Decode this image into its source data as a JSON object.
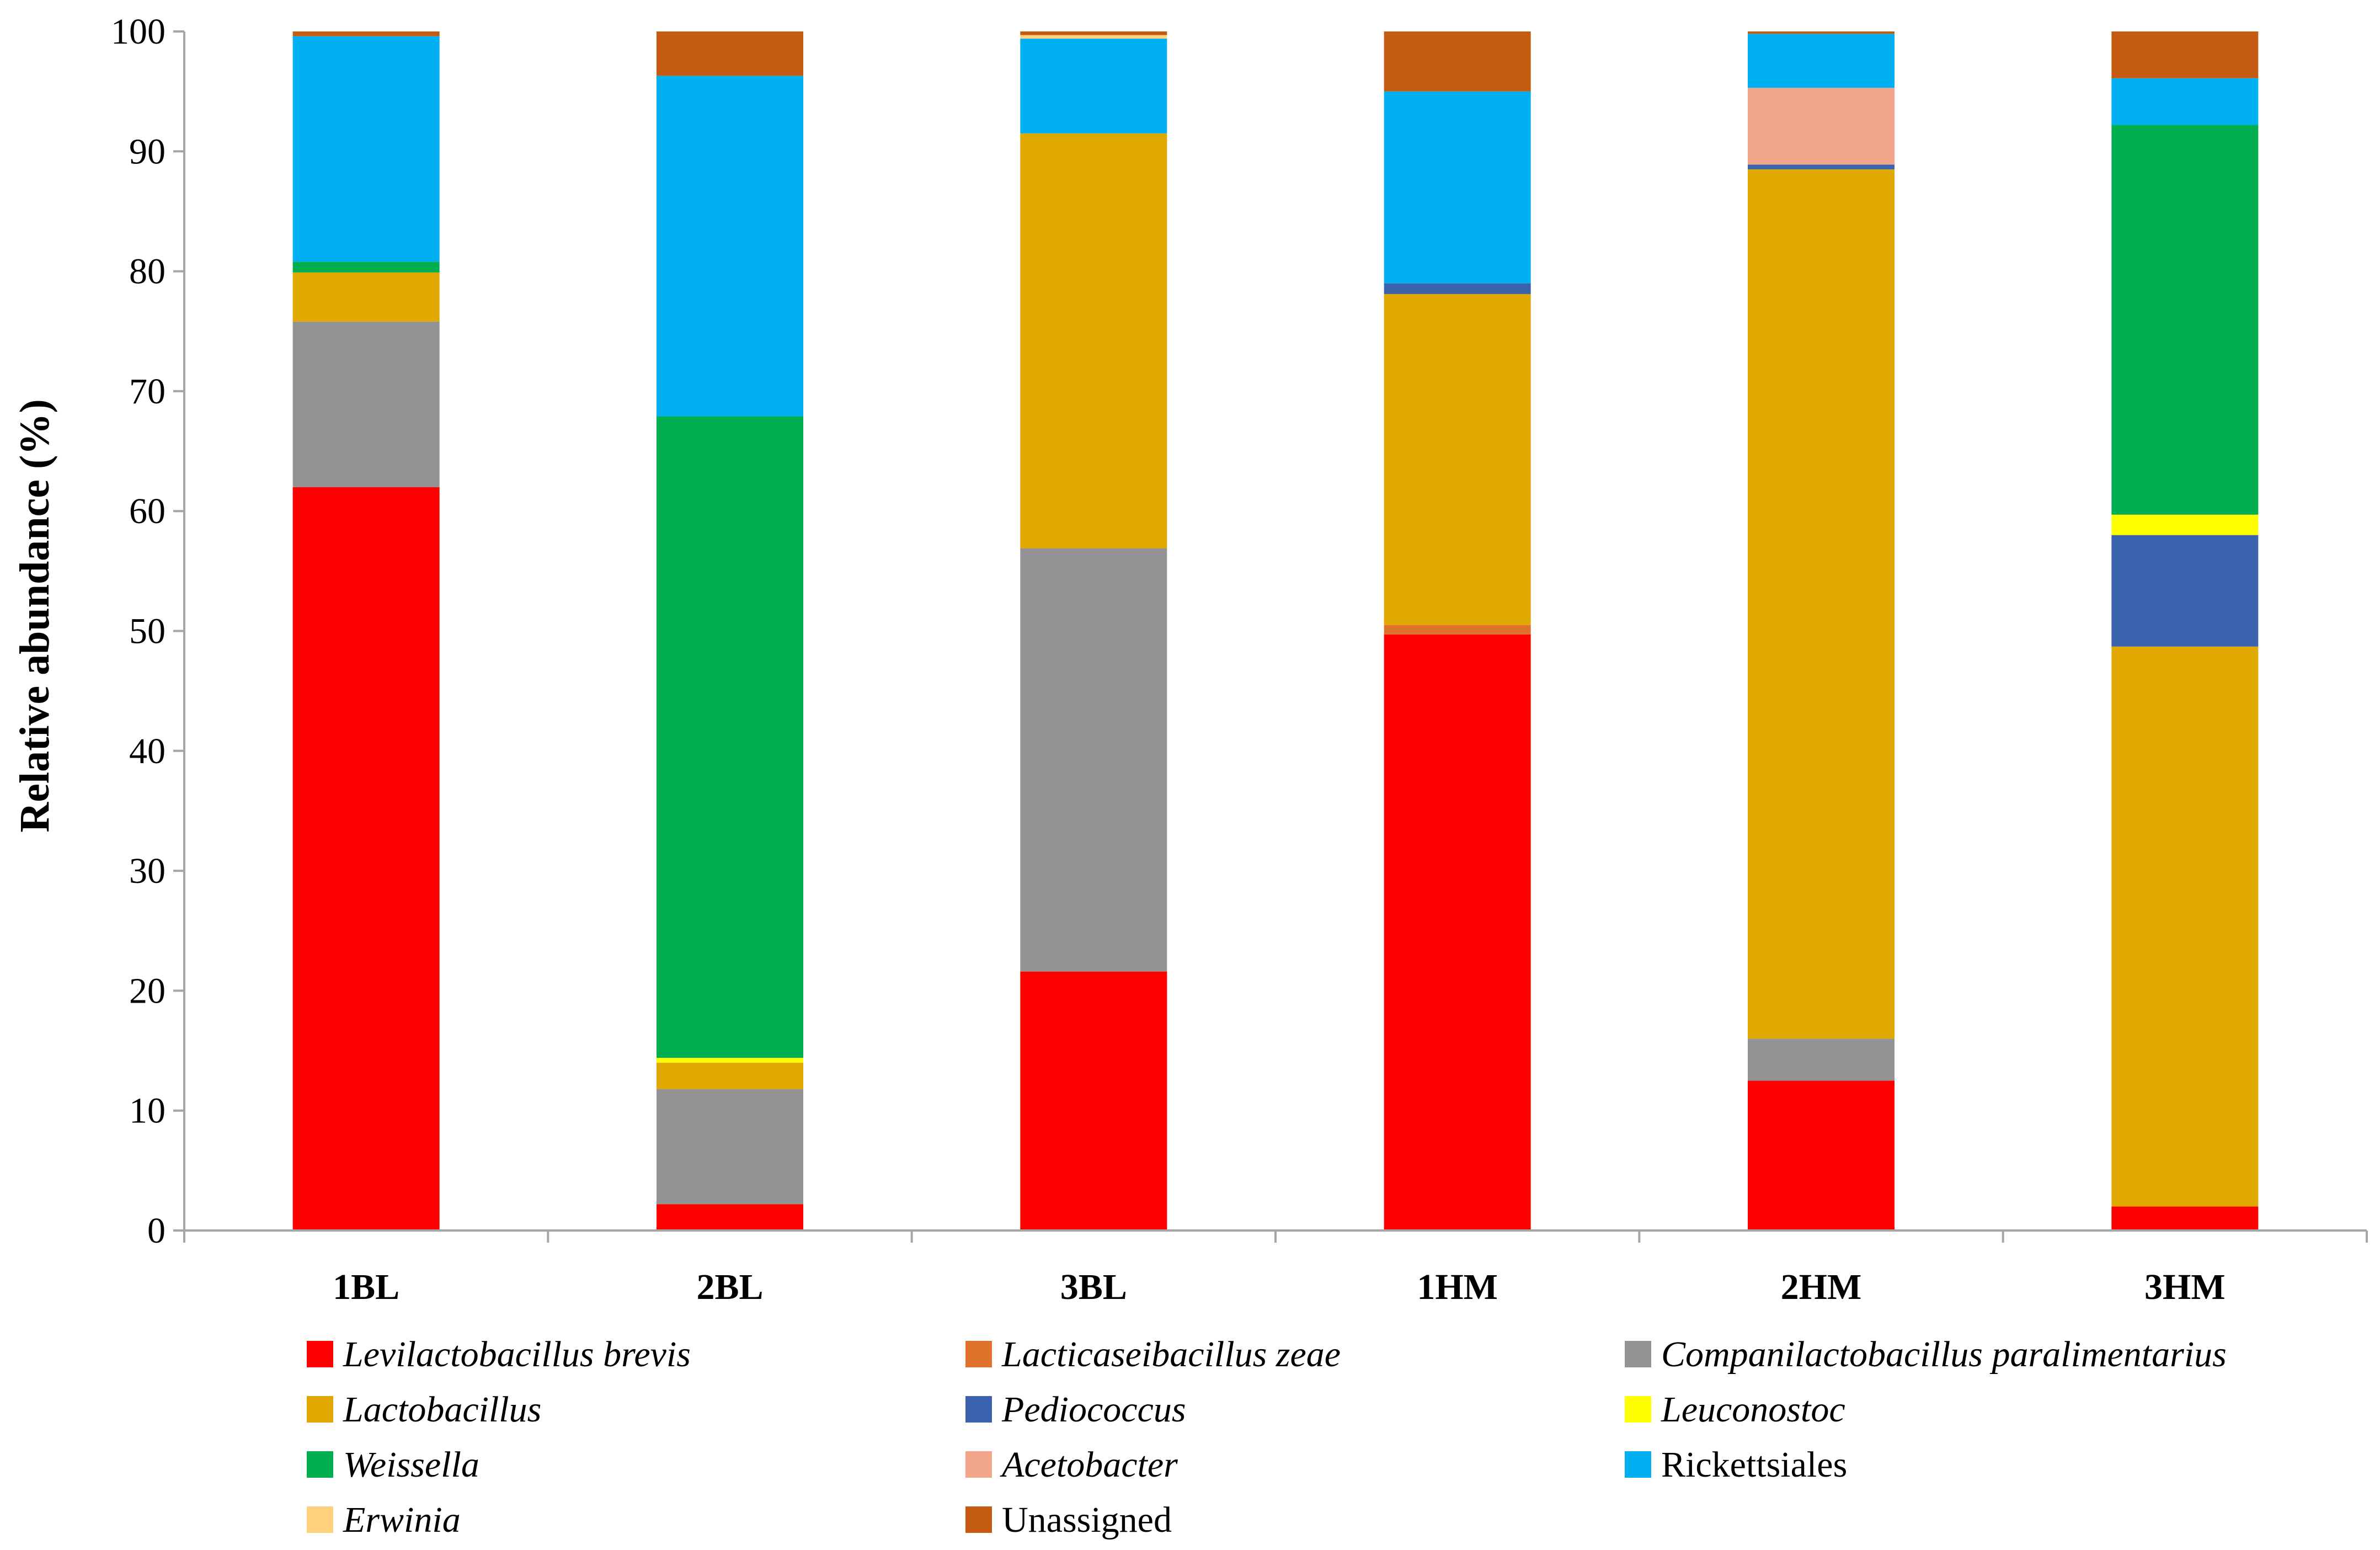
{
  "chart_data": {
    "type": "bar",
    "stacked": true,
    "title": "",
    "xlabel": "",
    "ylabel": "Relative abundance (%)",
    "ylim": [
      0,
      100
    ],
    "yticks": [
      0,
      10,
      20,
      30,
      40,
      50,
      60,
      70,
      80,
      90,
      100
    ],
    "ytick_labels": [
      "0",
      "10",
      "20",
      "30",
      "40",
      "50",
      "60",
      "70",
      "80",
      "90",
      "100"
    ],
    "grid": false,
    "legend_position": "bottom",
    "categories": [
      "1BL",
      "2BL",
      "3BL",
      "1HM",
      "2HM",
      "3HM"
    ],
    "series": [
      {
        "name": "Levilactobacillus brevis",
        "italic": true,
        "color": "#FF0000",
        "values": [
          62.0,
          2.2,
          21.6,
          49.7,
          12.5,
          2.0
        ]
      },
      {
        "name": "Lacticaseibacillus zeae",
        "italic": true,
        "color": "#E0712A",
        "values": [
          0.0,
          0.0,
          0.0,
          0.8,
          0.0,
          0.0
        ]
      },
      {
        "name": "Companilactobacillus paralimentarius",
        "italic": true,
        "color": "#939393",
        "values": [
          13.8,
          9.6,
          35.3,
          0.0,
          3.5,
          0.0
        ]
      },
      {
        "name": "Lactobacillus",
        "italic": true,
        "color": "#E1A900",
        "values": [
          4.1,
          2.2,
          34.6,
          27.6,
          72.5,
          46.7
        ]
      },
      {
        "name": "Pediococcus",
        "italic": true,
        "color": "#3A62AD",
        "values": [
          0.0,
          0.0,
          0.0,
          0.9,
          0.4,
          9.3
        ]
      },
      {
        "name": "Leuconostoc",
        "italic": true,
        "color": "#FFFF00",
        "values": [
          0.0,
          0.4,
          0.0,
          0.0,
          0.0,
          1.7
        ]
      },
      {
        "name": "Weissella",
        "italic": true,
        "color": "#00AF50",
        "values": [
          0.9,
          53.5,
          0.0,
          0.0,
          0.0,
          32.5
        ]
      },
      {
        "name": "Acetobacter",
        "italic": true,
        "color": "#F2A68A",
        "values": [
          0.0,
          0.0,
          0.0,
          0.0,
          6.4,
          0.0
        ]
      },
      {
        "name": "Rickettsiales",
        "italic": false,
        "color": "#00B0F0",
        "values": [
          18.8,
          28.4,
          7.9,
          16.0,
          4.5,
          3.9
        ]
      },
      {
        "name": "Erwinia",
        "italic": true,
        "color": "#FFD17F",
        "values": [
          0.0,
          0.0,
          0.3,
          0.0,
          0.0,
          0.0
        ]
      },
      {
        "name": "Unassigned",
        "italic": false,
        "color": "#C55A11",
        "values": [
          0.4,
          3.7,
          0.3,
          5.0,
          0.2,
          3.9
        ]
      }
    ]
  },
  "colors": {
    "axis": "#A6A6A6",
    "text": "#000000",
    "background": "#FFFFFF"
  }
}
